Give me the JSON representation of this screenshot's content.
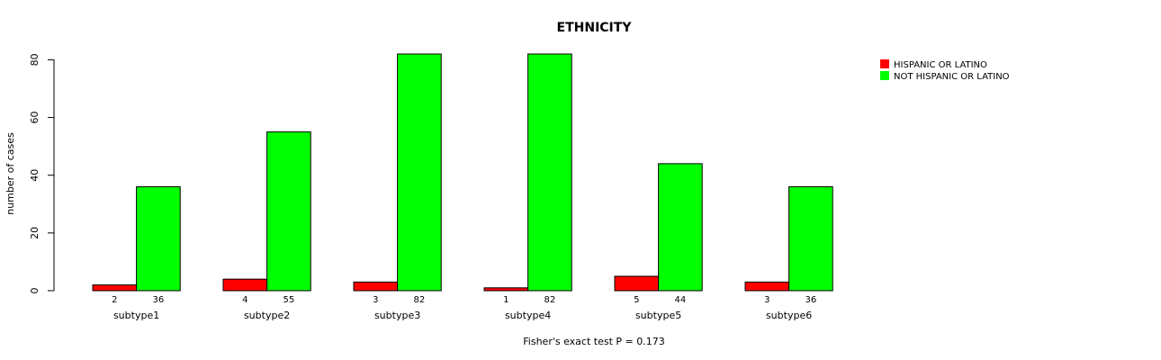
{
  "chart_data": {
    "type": "bar",
    "title": "ETHNICITY",
    "xlabel": "Fisher's exact test P = 0.173",
    "ylabel": "number of cases",
    "categories": [
      "subtype1",
      "subtype2",
      "subtype3",
      "subtype4",
      "subtype5",
      "subtype6"
    ],
    "series": [
      {
        "name": "HISPANIC OR LATINO",
        "color": "#ff0000",
        "values": [
          2,
          4,
          3,
          1,
          5,
          3
        ]
      },
      {
        "name": "NOT HISPANIC OR LATINO",
        "color": "#00ff00",
        "values": [
          36,
          55,
          82,
          82,
          44,
          36
        ]
      }
    ],
    "yticks": [
      "0",
      "20",
      "40",
      "60",
      "80"
    ],
    "ylim": [
      0,
      82
    ],
    "grid": false,
    "legend_position": "top-right"
  }
}
